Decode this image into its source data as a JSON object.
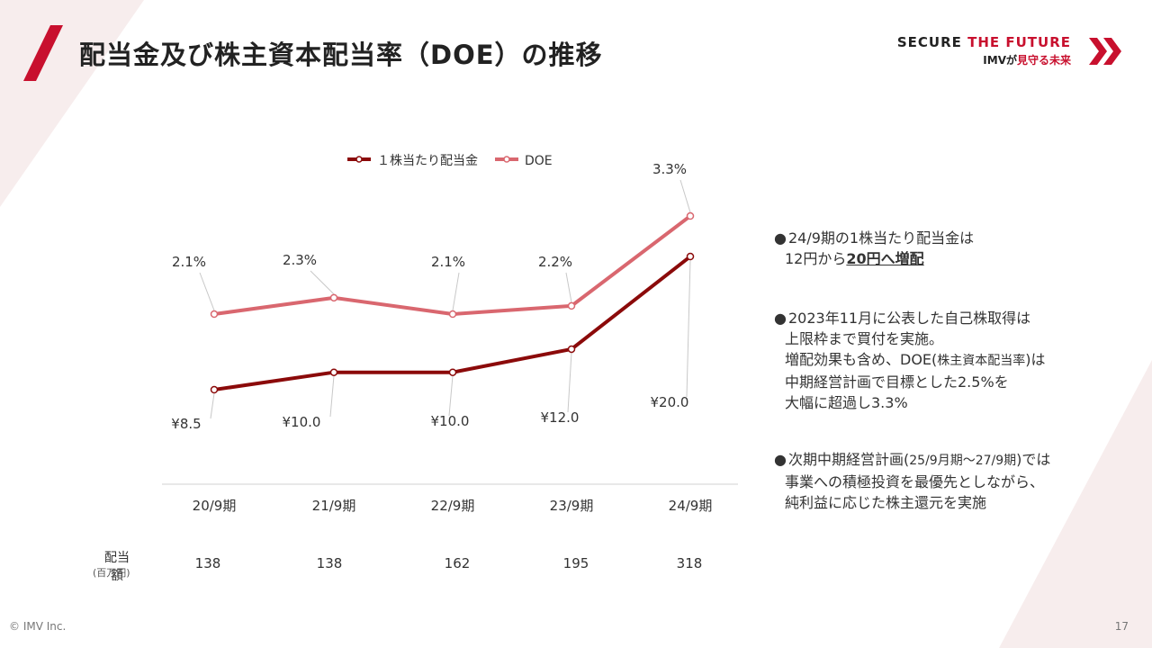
{
  "slide": {
    "title": "配当金及び株主資本配当率（DOE）の推移",
    "brand_top_prefix": "SECURE ",
    "brand_top_accent": "THE FUTURE",
    "brand_bottom_prefix": "IMVが",
    "brand_bottom_accent": "見守る未来",
    "footer_copyright": "© IMV Inc.",
    "page_number": "17",
    "accent_color": "#c8102e"
  },
  "chart_data": {
    "type": "line",
    "categories": [
      "20/9期",
      "21/9期",
      "22/9期",
      "23/9期",
      "24/9期"
    ],
    "series": [
      {
        "name": "１株当たり配当金",
        "values": [
          8.5,
          10.0,
          10.0,
          12.0,
          20.0
        ],
        "labels": [
          "¥8.5",
          "¥10.0",
          "¥10.0",
          "¥12.0",
          "¥20.0"
        ],
        "color": "#8b0a0a"
      },
      {
        "name": "DOE",
        "values": [
          2.1,
          2.3,
          2.1,
          2.2,
          3.3
        ],
        "labels": [
          "2.1%",
          "2.3%",
          "2.1%",
          "2.2%",
          "3.3%"
        ],
        "color": "#d9676f"
      }
    ],
    "legend_position": "top",
    "grid": false
  },
  "dividend_table": {
    "label": "配当額",
    "sublabel": "(百万円)",
    "values": [
      "138",
      "138",
      "162",
      "195",
      "318"
    ]
  },
  "notes": [
    {
      "bullet": "●",
      "line1": "24/9期の1株当たり配当金は",
      "line2_prefix": "12円から",
      "line2_emph": "20円へ増配"
    },
    {
      "bullet": "●",
      "line1": "2023年11月に公表した自己株取得は",
      "line2": "上限枠まで買付を実施。",
      "line3_prefix": "増配効果も含め、DOE(",
      "line3_small": "株主資本配当率",
      "line3_suffix": ")は",
      "line4": "中期経営計画で目標とした2.5%を",
      "line5": "大幅に超過し3.3%"
    },
    {
      "bullet": "●",
      "line1_prefix": "次期中期経営計画(",
      "line1_small": "25/9月期～27/9期",
      "line1_suffix": ")では",
      "line2": "事業への積極投資を最優先としながら、",
      "line3": "純利益に応じた株主還元を実施"
    }
  ]
}
